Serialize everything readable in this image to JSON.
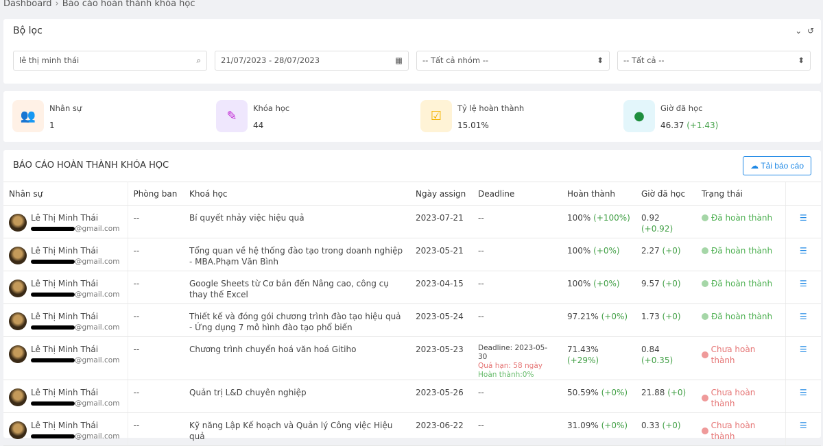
{
  "breadcrumb": {
    "root": "Dashboard",
    "current": "Báo cáo hoàn thành khóa học"
  },
  "filter": {
    "title": "Bộ lọc",
    "search_value": "lê thị minh thái",
    "date_range": "21/07/2023 - 28/07/2023",
    "group_select": "-- Tất cả nhóm --",
    "status_select": "-- Tất cả --"
  },
  "stats": [
    {
      "label": "Nhân sự",
      "value": "1",
      "icon": "users-icon",
      "color": "#f57c00",
      "bg": "#fff1e6"
    },
    {
      "label": "Khóa học",
      "value": "44",
      "icon": "course-edit-icon",
      "color": "#c026d3",
      "bg": "#efe7fd"
    },
    {
      "label": "Tỷ lệ hoàn thành",
      "value": "15.01%",
      "icon": "checkbox-icon",
      "color": "#f4b400",
      "bg": "#fff3d6"
    },
    {
      "label": "Giờ đã học",
      "value": "46.37",
      "delta": "(+1.43)",
      "icon": "clock-icon",
      "color": "#1e8e3e",
      "bg": "#e3f6fb"
    }
  ],
  "report": {
    "title": "BÁO CÁO HOÀN THÀNH KHÓA HỌC",
    "download_label": "Tải báo cáo",
    "columns": [
      "Nhân sự",
      "Phòng ban",
      "Khoá học",
      "Ngày assign",
      "Deadline",
      "Hoàn thành",
      "Giờ đã học",
      "Trạng thái"
    ],
    "rows": [
      {
        "name": "Lê Thị Minh Thái",
        "email": "@gmail.com",
        "dept": "--",
        "course": "Bí quyết nhảy việc hiệu quả",
        "assign": "2023-07-21",
        "deadline": "--",
        "pct": "100%",
        "pct_d": "(+100%)",
        "hrs": "0.92",
        "hrs_d": "(+0.92)",
        "status": "Đã hoàn thành",
        "done": true
      },
      {
        "name": "Lê Thị Minh Thái",
        "email": "@gmail.com",
        "dept": "--",
        "course": "Tổng quan về hệ thống đào tạo trong doanh nghiệp - MBA.Phạm Văn Bình",
        "assign": "2023-05-21",
        "deadline": "--",
        "pct": "100%",
        "pct_d": "(+0%)",
        "hrs": "2.27",
        "hrs_d": "(+0)",
        "status": "Đã hoàn thành",
        "done": true
      },
      {
        "name": "Lê Thị Minh Thái",
        "email": "@gmail.com",
        "dept": "--",
        "course": "Google Sheets từ Cơ bản đến Nâng cao, công cụ thay thế Excel",
        "assign": "2023-04-15",
        "deadline": "--",
        "pct": "100%",
        "pct_d": "(+0%)",
        "hrs": "9.57",
        "hrs_d": "(+0)",
        "status": "Đã hoàn thành",
        "done": true
      },
      {
        "name": "Lê Thị Minh Thái",
        "email": "@gmail.com",
        "dept": "--",
        "course": "Thiết kế và đóng gói chương trình đào tạo hiệu quả - Ứng dụng 7 mô hình đào tạo phổ biến",
        "assign": "2023-05-24",
        "deadline": "--",
        "pct": "97.21%",
        "pct_d": "(+0%)",
        "hrs": "1.73",
        "hrs_d": "(+0)",
        "status": "Đã hoàn thành",
        "done": true
      },
      {
        "name": "Lê Thị Minh Thái",
        "email": "@gmail.com",
        "dept": "--",
        "course": "Chương trình chuyển hoá văn hoá Gitiho",
        "assign": "2023-05-23",
        "deadline": "Deadline: 2023-05-30",
        "overdue": "Quá hạn: 58 ngày",
        "completed": "Hoàn thành:0%",
        "pct": "71.43%",
        "pct_d": "(+29%)",
        "hrs": "0.84",
        "hrs_d": "(+0.35)",
        "status": "Chưa hoàn thành",
        "done": false
      },
      {
        "name": "Lê Thị Minh Thái",
        "email": "@gmail.com",
        "dept": "--",
        "course": "Quản trị L&D chuyên nghiệp",
        "assign": "2023-05-26",
        "deadline": "--",
        "pct": "50.59%",
        "pct_d": "(+0%)",
        "hrs": "21.88",
        "hrs_d": "(+0)",
        "status": "Chưa hoàn thành",
        "done": false
      },
      {
        "name": "Lê Thị Minh Thái",
        "email": "@gmail.com",
        "dept": "--",
        "course": "Kỹ năng Lập Kế hoạch và Quản lý Công việc Hiệu quả",
        "assign": "2023-06-22",
        "deadline": "--",
        "pct": "31.09%",
        "pct_d": "(+0%)",
        "hrs": "0.33",
        "hrs_d": "(+0)",
        "status": "Chưa hoàn thành",
        "done": false
      }
    ]
  }
}
